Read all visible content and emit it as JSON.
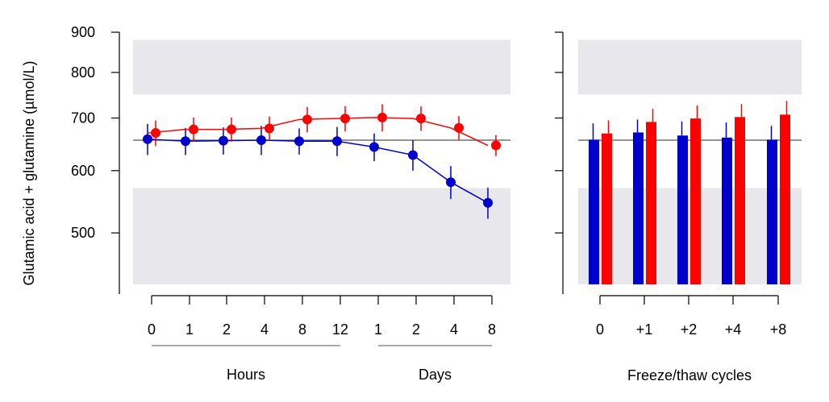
{
  "ylabel": "Glutamic acid + glutamine (µmol/L)",
  "colors": {
    "blue": "#0000cc",
    "red": "#ff0000",
    "band": "#e8e8ec",
    "refline": "#555555",
    "bracket": "#777777"
  },
  "chart_data": [
    {
      "type": "line",
      "ylim": [
        430,
        900
      ],
      "yticks": [
        "900",
        "800",
        "700",
        "600",
        "500"
      ],
      "ytick_values": [
        900,
        800,
        700,
        600,
        500
      ],
      "scale": "log",
      "reference_line": 656,
      "acceptable_band_low": [
        430,
        570
      ],
      "acceptable_band_high": [
        750,
        880
      ],
      "categories": [
        "0",
        "1",
        "2",
        "4",
        "8",
        "12",
        "1",
        "2",
        "4",
        "8"
      ],
      "groups": [
        {
          "label": "Hours",
          "from": 0,
          "to": 5
        },
        {
          "label": "Days",
          "from": 6,
          "to": 9
        }
      ],
      "series": [
        {
          "color": "blue",
          "values": [
            658,
            654,
            655,
            656,
            654,
            654,
            643,
            628,
            580,
            546
          ],
          "err": [
            30,
            26,
            26,
            28,
            25,
            28,
            26,
            28,
            28,
            25
          ]
        },
        {
          "color": "red",
          "values": [
            670,
            677,
            677,
            679,
            697,
            699,
            701,
            699,
            680,
            646
          ],
          "err": [
            25,
            24,
            24,
            24,
            26,
            26,
            28,
            25,
            24,
            20
          ]
        }
      ]
    },
    {
      "type": "bar",
      "ylim": [
        430,
        900
      ],
      "scale": "log",
      "reference_line": 656,
      "acceptable_band_low": [
        430,
        570
      ],
      "acceptable_band_high": [
        750,
        880
      ],
      "categories": [
        "0",
        "+1",
        "+2",
        "+4",
        "+8"
      ],
      "xlabel": "Freeze/thaw cycles",
      "series": [
        {
          "color": "blue",
          "values": [
            657,
            671,
            665,
            661,
            657
          ],
          "err": [
            32,
            26,
            28,
            30,
            27
          ]
        },
        {
          "color": "red",
          "values": [
            669,
            692,
            699,
            702,
            707
          ],
          "err": [
            26,
            27,
            27,
            27,
            29
          ]
        }
      ]
    }
  ]
}
